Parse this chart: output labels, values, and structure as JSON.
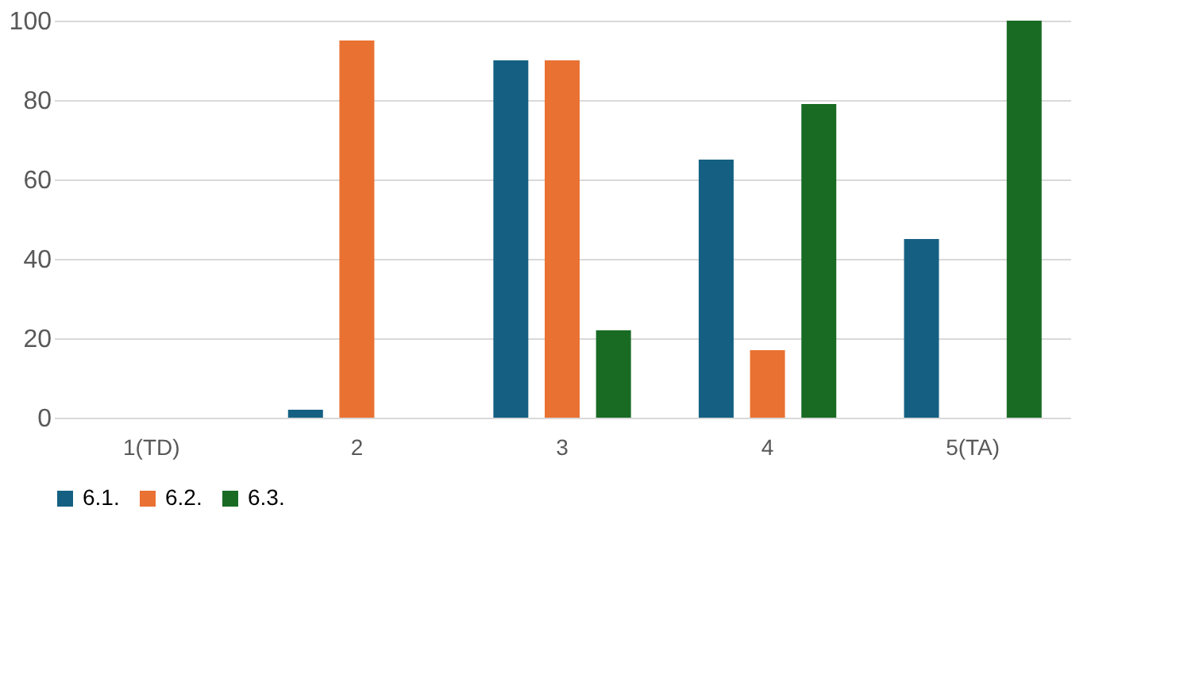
{
  "chart_data": {
    "type": "bar",
    "categories": [
      "1(TD)",
      "2",
      "3",
      "4",
      "5(TA)"
    ],
    "series": [
      {
        "name": "6.1.",
        "color": "#156082",
        "values": [
          0,
          2,
          90,
          65,
          45
        ]
      },
      {
        "name": "6.2.",
        "color": "#e97132",
        "values": [
          0,
          95,
          90,
          17,
          0
        ]
      },
      {
        "name": "6.3.",
        "color": "#196b24",
        "values": [
          0,
          0,
          22,
          79,
          100
        ]
      }
    ],
    "ylim": [
      0,
      100
    ],
    "yticks": [
      0,
      20,
      40,
      60,
      80,
      100
    ],
    "grid": "y",
    "legend": "bottom"
  }
}
